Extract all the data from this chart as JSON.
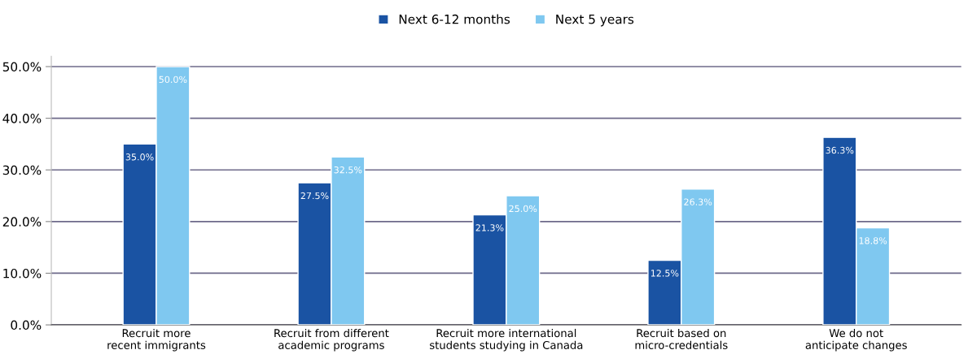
{
  "chart_data": {
    "type": "bar",
    "categories": [
      "Recruit more\nrecent immigrants",
      "Recruit from different\nacademic programs",
      "Recruit more international\nstudents studying in Canada",
      "Recruit based on\nmicro-credentials",
      "We do not\nanticipate changes"
    ],
    "series": [
      {
        "name": "Next 6-12 months",
        "color": "#1a53a3",
        "values": [
          35.0,
          27.5,
          21.3,
          12.5,
          36.3
        ],
        "value_labels": [
          "35.0%",
          "27.5%",
          "21.3%",
          "12.5%",
          "36.3%"
        ]
      },
      {
        "name": "Next 5 years",
        "color": "#7fc8f0",
        "values": [
          50.0,
          32.5,
          25.0,
          26.3,
          18.8
        ],
        "value_labels": [
          "50.0%",
          "32.5%",
          "25.0%",
          "26.3%",
          "18.8%"
        ]
      }
    ],
    "ylim": [
      0,
      52
    ],
    "yticks": [
      {
        "value": 0,
        "label": "0.0%"
      },
      {
        "value": 10,
        "label": "10.0%"
      },
      {
        "value": 20,
        "label": "20.0%"
      },
      {
        "value": 30,
        "label": "30.0%"
      },
      {
        "value": 40,
        "label": "40.0%"
      },
      {
        "value": 50,
        "label": "50.0%"
      }
    ],
    "grid": "y",
    "legend": "top"
  }
}
